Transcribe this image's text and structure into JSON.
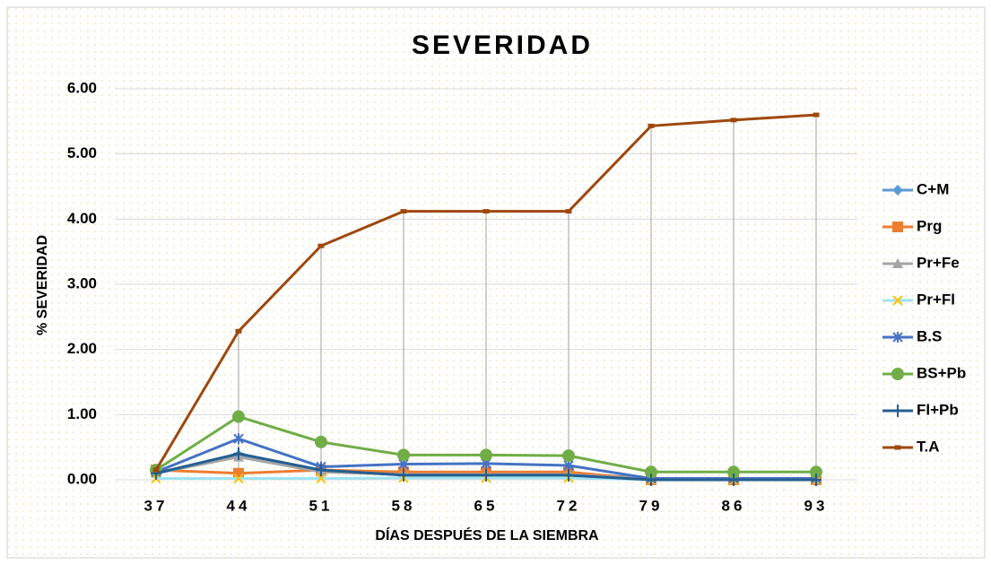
{
  "chart_data": {
    "type": "line",
    "title": "SEVERIDAD",
    "xlabel": "DÍAS DESPUÉS DE LA SIEMBRA",
    "ylabel": "% SEVERIDAD",
    "categories": [
      "37",
      "44",
      "51",
      "58",
      "65",
      "72",
      "79",
      "86",
      "93"
    ],
    "ylim": [
      0,
      6
    ],
    "yticks": [
      {
        "value": 0,
        "label": "0.00"
      },
      {
        "value": 1,
        "label": "1.00"
      },
      {
        "value": 2,
        "label": "2.00"
      },
      {
        "value": 3,
        "label": "3.00"
      },
      {
        "value": 4,
        "label": "4.00"
      },
      {
        "value": 5,
        "label": "5.00"
      },
      {
        "value": 6,
        "label": "6.00"
      }
    ],
    "grid": true,
    "legend": "right",
    "drop_lines": true,
    "series": [
      {
        "name": "C+M",
        "color": "#5b9bd5",
        "marker": "diamond",
        "values": [
          0.1,
          0.38,
          0.15,
          0.1,
          0.1,
          0.1,
          0.02,
          0.02,
          0.02
        ]
      },
      {
        "name": "Prg",
        "color": "#ed7d31",
        "marker": "square",
        "values": [
          0.15,
          0.1,
          0.15,
          0.12,
          0.12,
          0.12,
          0,
          0,
          0
        ]
      },
      {
        "name": "Pr+Fe",
        "color": "#a5a5a5",
        "marker": "triangle",
        "values": [
          0.1,
          0.35,
          0.12,
          0.08,
          0.08,
          0.08,
          0.01,
          0.01,
          0.01
        ]
      },
      {
        "name": "Pr+Fl",
        "color": "#ffc000",
        "line_color": "#9fe3f2",
        "marker": "x",
        "values": [
          0.02,
          0.02,
          0.02,
          0.03,
          0.03,
          0.03,
          0,
          0,
          0
        ]
      },
      {
        "name": "B.S",
        "color": "#4472c4",
        "marker": "asterisk",
        "values": [
          0.12,
          0.63,
          0.2,
          0.24,
          0.25,
          0.22,
          0.02,
          0.02,
          0.02
        ]
      },
      {
        "name": "BS+Pb",
        "color": "#70ad47",
        "marker": "circle",
        "values": [
          0.15,
          0.97,
          0.58,
          0.38,
          0.38,
          0.37,
          0.12,
          0.12,
          0.12
        ]
      },
      {
        "name": "Fl+Pb",
        "color": "#255e91",
        "marker": "plus",
        "values": [
          0.1,
          0.4,
          0.15,
          0.07,
          0.07,
          0.07,
          0,
          0,
          0
        ]
      },
      {
        "name": "T.A",
        "color": "#9e480e",
        "marker": "dash",
        "values": [
          0.15,
          2.28,
          3.59,
          4.12,
          4.12,
          4.12,
          5.43,
          5.52,
          5.6
        ]
      }
    ]
  }
}
